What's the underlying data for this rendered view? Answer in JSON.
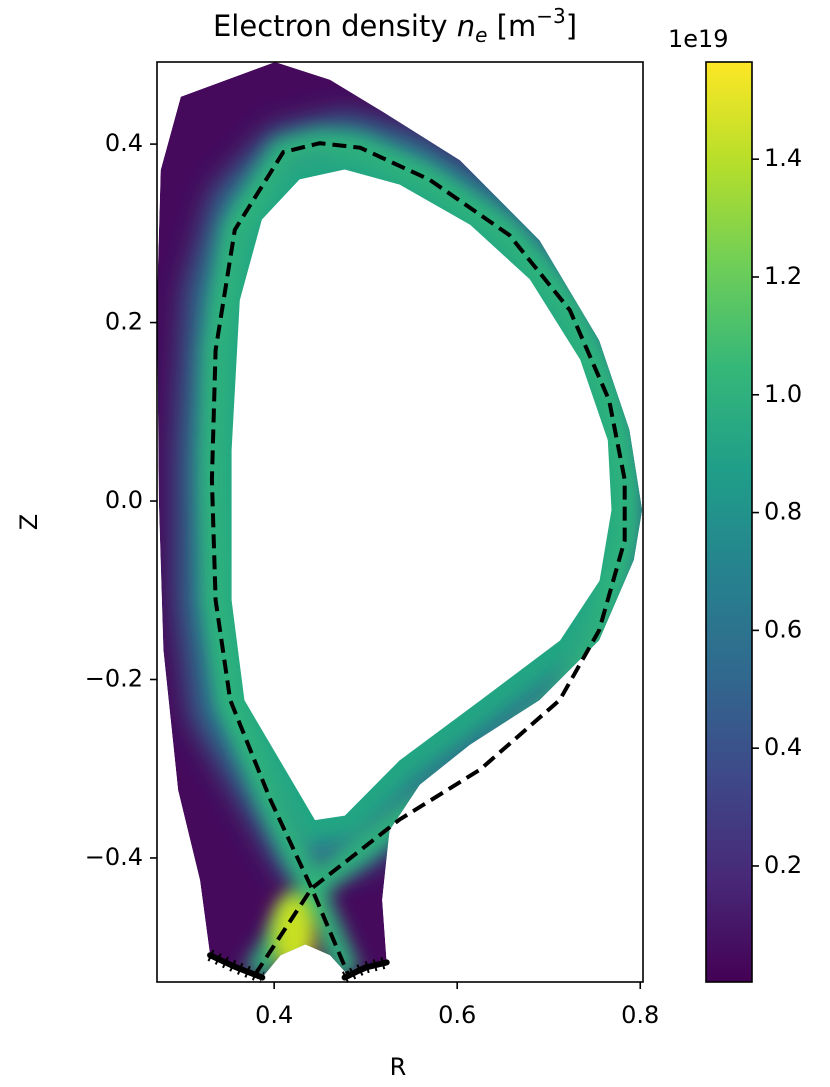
{
  "chart_data": {
    "type": "field",
    "title": {
      "text": "Electron density ",
      "symbol": "n",
      "subscript": "e",
      "unit_open": " [m",
      "superscript": "−3",
      "unit_close": "]"
    },
    "xlabel": "R",
    "ylabel": "Z",
    "xlim": [
      0.272,
      0.803
    ],
    "ylim": [
      -0.539,
      0.492
    ],
    "xticks": [
      0.4,
      0.6,
      0.8
    ],
    "yticks": [
      {
        "value": -0.4,
        "label": "−0.4"
      },
      {
        "value": -0.2,
        "label": "−0.2"
      },
      {
        "value": 0,
        "label": "0.0"
      },
      0.2,
      0.4
    ],
    "colorbar": {
      "colormap": "viridis",
      "offset_label": "1e19",
      "lim": [
        0.003,
        1.565
      ],
      "ticks": [
        0.2,
        0.4,
        0.6,
        0.8,
        {
          "value": 1,
          "label": "1.0"
        },
        1.2,
        1.4
      ]
    },
    "boundary": {
      "R": [
        0.298,
        0.401,
        0.461,
        0.516,
        0.603,
        0.69,
        0.755,
        0.788,
        0.802,
        0.793,
        0.755,
        0.69,
        0.614,
        0.559,
        0.526,
        0.518,
        0.523,
        0.483,
        0.461,
        0.434,
        0.407,
        0.387,
        0.33,
        0.319,
        0.295,
        0.279,
        0.274,
        0.272,
        0.276
      ],
      "Z": [
        0.453,
        0.492,
        0.472,
        0.438,
        0.382,
        0.292,
        0.18,
        0.08,
        -0.01,
        -0.066,
        -0.156,
        -0.223,
        -0.273,
        -0.318,
        -0.369,
        -0.447,
        -0.517,
        -0.534,
        -0.509,
        -0.497,
        -0.509,
        -0.534,
        -0.509,
        -0.425,
        -0.324,
        -0.167,
        0.001,
        0.225,
        0.371
      ]
    },
    "core": {
      "R": [
        0.445,
        0.368,
        0.354,
        0.354,
        0.363,
        0.387,
        0.428,
        0.477,
        0.537,
        0.614,
        0.679,
        0.734,
        0.764,
        0.768,
        0.755,
        0.712,
        0.625,
        0.537,
        0.477
      ],
      "Z": [
        -0.357,
        -0.223,
        -0.111,
        0.057,
        0.225,
        0.315,
        0.36,
        0.371,
        0.354,
        0.309,
        0.248,
        0.158,
        0.068,
        -0.01,
        -0.089,
        -0.156,
        -0.223,
        -0.29,
        -0.352
      ]
    },
    "separatrix": {
      "color": "#000000",
      "style": "dashed",
      "R": [
        0.379,
        0.441,
        0.537,
        0.625,
        0.712,
        0.755,
        0.783,
        0.783,
        0.766,
        0.723,
        0.657,
        0.57,
        0.494,
        0.45,
        0.41,
        0.357,
        0.336,
        0.332,
        0.336,
        0.352,
        0.396,
        0.441,
        0.481
      ],
      "Z": [
        -0.531,
        -0.434,
        -0.357,
        -0.301,
        -0.223,
        -0.145,
        -0.044,
        0.024,
        0.113,
        0.214,
        0.298,
        0.36,
        0.396,
        0.401,
        0.391,
        0.304,
        0.169,
        0.024,
        -0.111,
        -0.223,
        -0.335,
        -0.434,
        -0.531
      ]
    },
    "divertor_plates": [
      {
        "R": [
          0.33,
          0.357,
          0.387
        ],
        "Z": [
          -0.509,
          -0.522,
          -0.534
        ]
      },
      {
        "R": [
          0.477,
          0.499,
          0.523
        ],
        "Z": [
          -0.534,
          -0.523,
          -0.517
        ]
      }
    ]
  }
}
